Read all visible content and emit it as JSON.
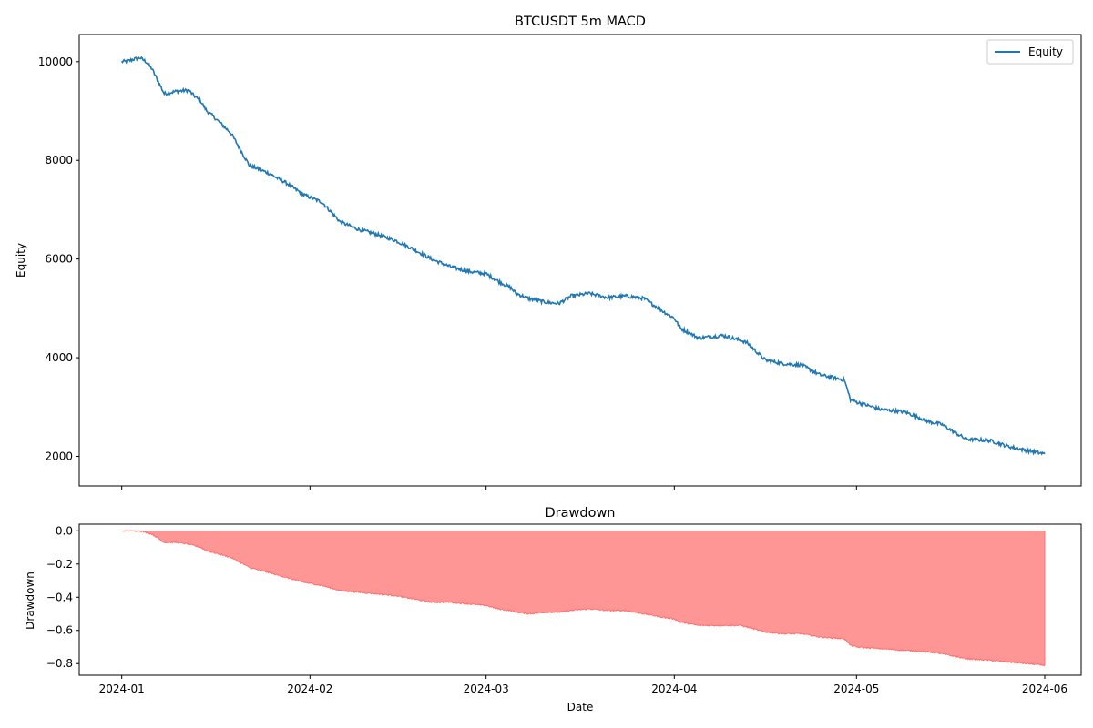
{
  "chart_data": [
    {
      "type": "line",
      "title": "BTCUSDT 5m MACD",
      "xlabel": "",
      "ylabel": "Equity",
      "xlim": [
        "2023-12-25",
        "2024-06-07"
      ],
      "ylim": [
        1400,
        10550
      ],
      "yticks": [
        2000,
        4000,
        6000,
        8000,
        10000
      ],
      "yticks_labels": [
        "2000",
        "4000",
        "6000",
        "8000",
        "10000"
      ],
      "grid": false,
      "legend": {
        "placement": "top-right",
        "entries": [
          "Equity"
        ]
      },
      "colors": {
        "line": "#1f77b4"
      },
      "series": [
        {
          "name": "Equity",
          "x": [
            "2024-01-01",
            "2024-01-02",
            "2024-01-03",
            "2024-01-04",
            "2024-01-05",
            "2024-01-06",
            "2024-01-08",
            "2024-01-10",
            "2024-01-12",
            "2024-01-13",
            "2024-01-14",
            "2024-01-15",
            "2024-01-16",
            "2024-01-19",
            "2024-01-22",
            "2024-01-25",
            "2024-01-28",
            "2024-01-31",
            "2024-02-03",
            "2024-02-06",
            "2024-02-09",
            "2024-02-12",
            "2024-02-15",
            "2024-02-18",
            "2024-02-21",
            "2024-02-24",
            "2024-02-27",
            "2024-03-01",
            "2024-03-03",
            "2024-03-05",
            "2024-03-06",
            "2024-03-08",
            "2024-03-11",
            "2024-03-13",
            "2024-03-15",
            "2024-03-18",
            "2024-03-21",
            "2024-03-24",
            "2024-03-27",
            "2024-03-30",
            "2024-04-01",
            "2024-04-02",
            "2024-04-05",
            "2024-04-09",
            "2024-04-12",
            "2024-04-13",
            "2024-04-16",
            "2024-04-19",
            "2024-04-22",
            "2024-04-25",
            "2024-04-29",
            "2024-04-30",
            "2024-05-01",
            "2024-05-05",
            "2024-05-09",
            "2024-05-13",
            "2024-05-15",
            "2024-05-19",
            "2024-05-23",
            "2024-05-26",
            "2024-05-29",
            "2024-06-01"
          ],
          "values": [
            10000,
            10010,
            10050,
            10080,
            10000,
            9850,
            9350,
            9400,
            9420,
            9300,
            9200,
            9000,
            8900,
            8550,
            7900,
            7750,
            7550,
            7300,
            7150,
            6750,
            6600,
            6500,
            6380,
            6200,
            6000,
            5850,
            5750,
            5700,
            5550,
            5420,
            5300,
            5200,
            5120,
            5100,
            5250,
            5300,
            5220,
            5250,
            5200,
            4950,
            4800,
            4600,
            4400,
            4450,
            4350,
            4300,
            3950,
            3880,
            3850,
            3650,
            3550,
            3150,
            3100,
            2950,
            2900,
            2700,
            2650,
            2350,
            2320,
            2200,
            2120,
            2050
          ]
        }
      ]
    },
    {
      "type": "area",
      "title": "Drawdown",
      "xlabel": "Date",
      "ylabel": "Drawdown",
      "xlim": [
        "2023-12-25",
        "2024-06-07"
      ],
      "ylim": [
        -0.87,
        0.04
      ],
      "yticks": [
        0.0,
        -0.2,
        -0.4,
        -0.6,
        -0.8
      ],
      "yticks_labels": [
        "0.0",
        "−0.2",
        "−0.4",
        "−0.6",
        "−0.8"
      ],
      "xticks": [
        "2024-01-01",
        "2024-02-01",
        "2024-03-01",
        "2024-04-01",
        "2024-05-01",
        "2024-06-01"
      ],
      "xticks_labels": [
        "2024-01",
        "2024-02",
        "2024-03",
        "2024-04",
        "2024-05",
        "2024-06"
      ],
      "grid": false,
      "colors": {
        "fill": "#ff9696",
        "edge": "#ff6f6f"
      },
      "series": [
        {
          "name": "",
          "x": [
            "2024-01-01",
            "2024-01-02",
            "2024-01-03",
            "2024-01-04",
            "2024-01-05",
            "2024-01-06",
            "2024-01-08",
            "2024-01-10",
            "2024-01-12",
            "2024-01-13",
            "2024-01-14",
            "2024-01-15",
            "2024-01-16",
            "2024-01-19",
            "2024-01-22",
            "2024-01-25",
            "2024-01-28",
            "2024-01-31",
            "2024-02-03",
            "2024-02-06",
            "2024-02-09",
            "2024-02-12",
            "2024-02-15",
            "2024-02-18",
            "2024-02-21",
            "2024-02-24",
            "2024-02-27",
            "2024-03-01",
            "2024-03-03",
            "2024-03-05",
            "2024-03-06",
            "2024-03-08",
            "2024-03-11",
            "2024-03-13",
            "2024-03-15",
            "2024-03-18",
            "2024-03-21",
            "2024-03-24",
            "2024-03-27",
            "2024-03-30",
            "2024-04-01",
            "2024-04-02",
            "2024-04-05",
            "2024-04-09",
            "2024-04-12",
            "2024-04-13",
            "2024-04-16",
            "2024-04-19",
            "2024-04-22",
            "2024-04-25",
            "2024-04-29",
            "2024-04-30",
            "2024-05-01",
            "2024-05-05",
            "2024-05-09",
            "2024-05-13",
            "2024-05-15",
            "2024-05-19",
            "2024-05-23",
            "2024-05-26",
            "2024-05-29",
            "2024-06-01"
          ],
          "values": [
            0,
            0,
            0,
            0,
            -0.01,
            -0.02,
            -0.07,
            -0.07,
            -0.08,
            -0.09,
            -0.1,
            -0.12,
            -0.13,
            -0.16,
            -0.22,
            -0.25,
            -0.28,
            -0.31,
            -0.33,
            -0.36,
            -0.37,
            -0.38,
            -0.39,
            -0.41,
            -0.43,
            -0.43,
            -0.44,
            -0.45,
            -0.47,
            -0.48,
            -0.49,
            -0.5,
            -0.49,
            -0.49,
            -0.48,
            -0.47,
            -0.48,
            -0.48,
            -0.5,
            -0.52,
            -0.53,
            -0.55,
            -0.57,
            -0.57,
            -0.57,
            -0.58,
            -0.61,
            -0.62,
            -0.62,
            -0.64,
            -0.65,
            -0.69,
            -0.7,
            -0.71,
            -0.72,
            -0.73,
            -0.74,
            -0.77,
            -0.78,
            -0.79,
            -0.8,
            -0.81
          ]
        }
      ]
    }
  ]
}
